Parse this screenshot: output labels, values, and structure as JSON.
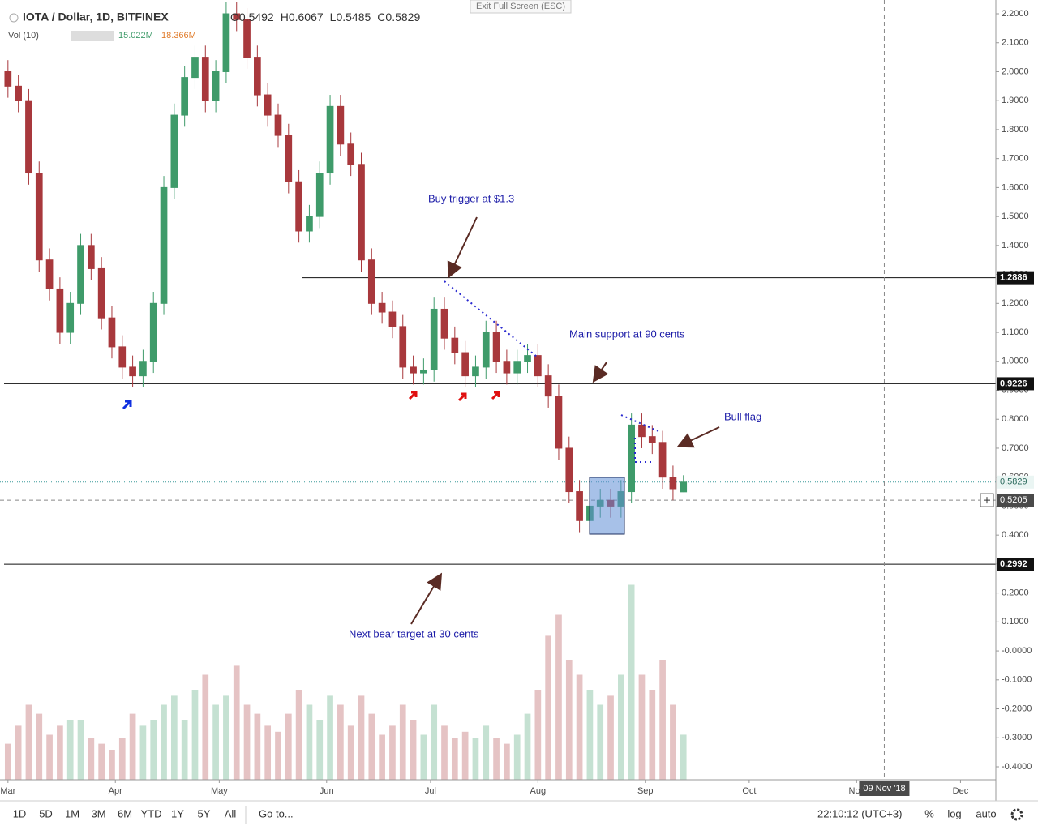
{
  "chart_data": {
    "type": "candlestick",
    "title": "IOTA / Dollar, 1D, BITFINEX",
    "x": [
      0,
      3,
      6,
      9,
      12,
      15,
      18,
      21,
      24,
      27,
      30,
      33,
      36,
      39,
      42,
      45,
      48,
      51,
      54,
      57,
      60,
      63,
      66,
      69,
      72,
      75,
      78,
      81,
      84,
      87,
      90,
      93,
      96,
      99,
      102,
      105,
      108,
      111,
      114,
      117,
      120,
      123,
      126,
      129,
      132,
      135,
      138,
      141,
      144,
      147,
      150,
      153,
      156,
      159,
      162,
      165,
      168,
      171,
      174,
      177,
      180,
      183,
      186,
      189,
      192,
      195
    ],
    "open": [
      2.0,
      1.95,
      1.9,
      1.65,
      1.35,
      1.25,
      1.1,
      1.2,
      1.4,
      1.32,
      1.15,
      1.05,
      0.98,
      0.95,
      1.0,
      1.2,
      1.6,
      1.85,
      1.98,
      2.05,
      1.9,
      2.0,
      2.2,
      2.18,
      2.05,
      1.92,
      1.85,
      1.78,
      1.62,
      1.45,
      1.5,
      1.65,
      1.88,
      1.75,
      1.68,
      1.35,
      1.2,
      1.17,
      1.12,
      0.98,
      0.96,
      0.97,
      1.18,
      1.08,
      1.03,
      0.95,
      0.98,
      1.1,
      1.0,
      0.96,
      1.0,
      1.02,
      0.95,
      0.88,
      0.7,
      0.55,
      0.45,
      0.5,
      0.52,
      0.5,
      0.55,
      0.78,
      0.74,
      0.72,
      0.6,
      0.5492
    ],
    "high": [
      2.04,
      1.99,
      1.94,
      1.69,
      1.39,
      1.29,
      1.24,
      1.44,
      1.44,
      1.36,
      1.19,
      1.09,
      1.02,
      1.04,
      1.24,
      1.64,
      1.89,
      2.02,
      2.09,
      2.09,
      2.04,
      2.24,
      2.24,
      2.22,
      2.09,
      1.96,
      1.89,
      1.82,
      1.66,
      1.54,
      1.69,
      1.92,
      1.92,
      1.79,
      1.72,
      1.39,
      1.24,
      1.21,
      1.16,
      1.02,
      1.01,
      1.22,
      1.22,
      1.12,
      1.07,
      1.02,
      1.14,
      1.14,
      1.04,
      1.04,
      1.06,
      1.06,
      0.99,
      0.92,
      0.74,
      0.59,
      0.54,
      0.56,
      0.56,
      0.59,
      0.82,
      0.82,
      0.78,
      0.76,
      0.64,
      0.6067
    ],
    "low": [
      1.91,
      1.86,
      1.61,
      1.31,
      1.21,
      1.06,
      1.06,
      1.16,
      1.28,
      1.11,
      1.01,
      0.94,
      0.91,
      0.91,
      0.96,
      1.16,
      1.56,
      1.81,
      1.94,
      1.86,
      1.86,
      1.96,
      2.14,
      2.01,
      1.88,
      1.81,
      1.74,
      1.58,
      1.41,
      1.41,
      1.46,
      1.61,
      1.71,
      1.64,
      1.31,
      1.16,
      1.13,
      1.08,
      0.94,
      0.92,
      0.92,
      0.93,
      1.04,
      0.99,
      0.91,
      0.91,
      0.94,
      0.96,
      0.92,
      0.92,
      0.96,
      0.91,
      0.84,
      0.66,
      0.51,
      0.41,
      0.41,
      0.46,
      0.46,
      0.46,
      0.51,
      0.7,
      0.68,
      0.56,
      0.52,
      0.5485
    ],
    "close": [
      1.95,
      1.9,
      1.65,
      1.35,
      1.25,
      1.1,
      1.2,
      1.4,
      1.32,
      1.15,
      1.05,
      0.98,
      0.95,
      1.0,
      1.2,
      1.6,
      1.85,
      1.98,
      2.05,
      1.9,
      2.0,
      2.2,
      2.18,
      2.05,
      1.92,
      1.85,
      1.78,
      1.62,
      1.45,
      1.5,
      1.65,
      1.88,
      1.75,
      1.68,
      1.35,
      1.2,
      1.17,
      1.12,
      0.98,
      0.96,
      0.97,
      1.18,
      1.08,
      1.03,
      0.95,
      0.98,
      1.1,
      1.0,
      0.96,
      1.0,
      1.02,
      0.95,
      0.88,
      0.7,
      0.55,
      0.45,
      0.5,
      0.52,
      0.5,
      0.55,
      0.78,
      0.74,
      0.72,
      0.6,
      0.56,
      0.5829
    ],
    "volume": [
      12,
      18,
      25,
      22,
      15,
      18,
      20,
      20,
      14,
      12,
      10,
      14,
      22,
      18,
      20,
      25,
      28,
      20,
      30,
      35,
      25,
      28,
      38,
      25,
      22,
      18,
      16,
      22,
      30,
      25,
      20,
      28,
      25,
      18,
      28,
      22,
      15,
      18,
      25,
      20,
      15,
      25,
      18,
      14,
      16,
      14,
      18,
      14,
      12,
      15,
      22,
      30,
      48,
      55,
      40,
      35,
      30,
      25,
      28,
      35,
      65,
      35,
      30,
      40,
      25,
      15.022
    ],
    "up_color": "#3f9b6a",
    "down_color": "#a8383c",
    "xlim": [
      -2.3,
      285.2
    ],
    "xticks": [
      {
        "value": 0,
        "label": "Mar"
      },
      {
        "value": 31,
        "label": "Apr"
      },
      {
        "value": 61,
        "label": "May"
      },
      {
        "value": 92,
        "label": "Jun"
      },
      {
        "value": 122,
        "label": "Jul"
      },
      {
        "value": 153,
        "label": "Aug"
      },
      {
        "value": 184,
        "label": "Sep"
      },
      {
        "value": 214,
        "label": "Oct"
      },
      {
        "value": 245,
        "label": "Nov"
      },
      {
        "value": 275,
        "label": "Dec"
      }
    ],
    "ylim": [
      -0.4448,
      2.2476
    ],
    "yticks": [
      {
        "value": 2.2,
        "label": "2.2000"
      },
      {
        "value": 2.1,
        "label": "2.1000"
      },
      {
        "value": 2.0,
        "label": "2.0000"
      },
      {
        "value": 1.9,
        "label": "1.9000"
      },
      {
        "value": 1.8,
        "label": "1.8000"
      },
      {
        "value": 1.7,
        "label": "1.7000"
      },
      {
        "value": 1.6,
        "label": "1.6000"
      },
      {
        "value": 1.5,
        "label": "1.5000"
      },
      {
        "value": 1.4,
        "label": "1.4000"
      },
      {
        "value": 1.3,
        "label": "1.3000"
      },
      {
        "value": 1.2,
        "label": "1.2000"
      },
      {
        "value": 1.1,
        "label": "1.1000"
      },
      {
        "value": 1.0,
        "label": "1.0000"
      },
      {
        "value": 0.9,
        "label": "0.9000"
      },
      {
        "value": 0.8,
        "label": "0.8000"
      },
      {
        "value": 0.7,
        "label": "0.7000"
      },
      {
        "value": 0.6,
        "label": "0.6000"
      },
      {
        "value": 0.5,
        "label": "0.5000"
      },
      {
        "value": 0.4,
        "label": "0.4000"
      },
      {
        "value": 0.3,
        "label": "0.3000"
      },
      {
        "value": 0.2,
        "label": "0.2000"
      },
      {
        "value": 0.1,
        "label": "0.1000"
      },
      {
        "value": 0,
        "label": "-0.0000"
      },
      {
        "value": -0.1,
        "label": "-0.1000"
      },
      {
        "value": -0.2,
        "label": "-0.2000"
      },
      {
        "value": -0.3,
        "label": "-0.3000"
      },
      {
        "value": -0.4,
        "label": "-0.4000"
      }
    ],
    "volume_ylim": [
      0,
      260
    ],
    "levels": [
      1.2886,
      0.9226,
      0.2992
    ],
    "crosshair_price": 0.5205,
    "crosshair_x": 253,
    "crosshair_date": "09 Nov '18",
    "annotations": [
      "Buy trigger at $1.3",
      "Main support at 90 cents",
      "Bull flag",
      "Next bear target at 30 cents"
    ],
    "header": {
      "o": "O",
      "h": "H",
      "l": "L",
      "c": "C",
      "volume_label": "Vol (10)",
      "volume_value": "15.022M",
      "volume_ma": "18.366M"
    },
    "toolbar": {
      "ranges": [
        "1D",
        "5D",
        "1M",
        "3M",
        "6M",
        "YTD",
        "1Y",
        "5Y",
        "All"
      ],
      "goto": "Go to...",
      "time": "22:10:12 (UTC+3)",
      "percent": "%",
      "log": "log",
      "auto": "auto",
      "exit": "Exit Full Screen (ESC)"
    }
  }
}
